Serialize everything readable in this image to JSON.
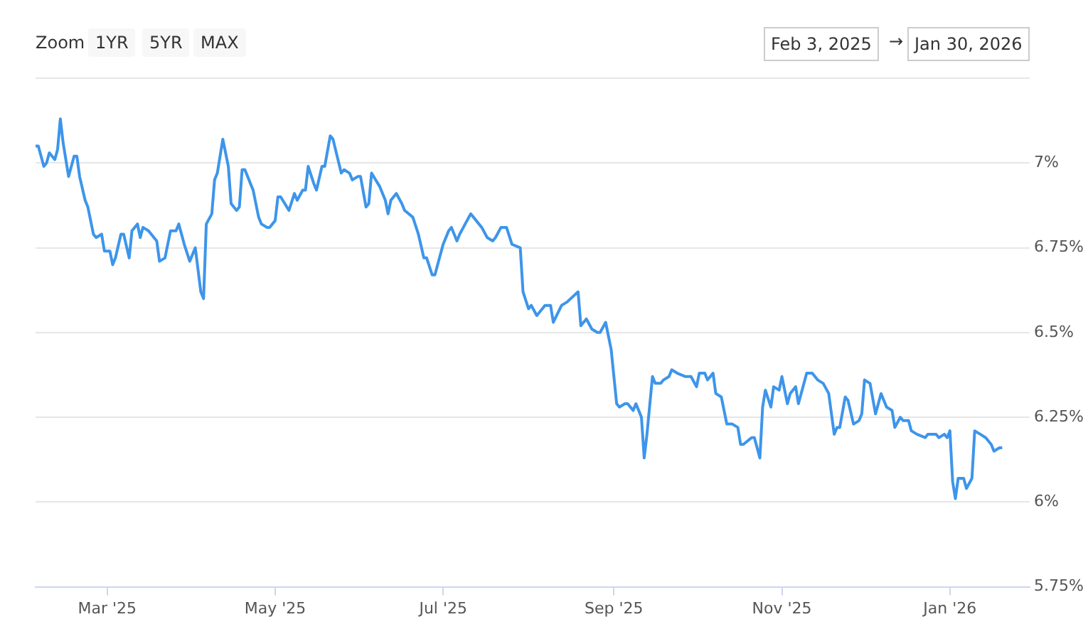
{
  "chart_data": {
    "type": "line",
    "color": "#3d95ea",
    "legend": false,
    "grid": "y",
    "marker": "none",
    "line_style": "solid",
    "annotations": [
      "Zoom",
      "1YR",
      "5YR",
      "MAX",
      "Feb 3, 2025",
      "→",
      "Jan 30, 2026"
    ],
    "xlim": [
      "2025-02-03",
      "2026-01-30"
    ],
    "xticks": [
      {
        "value": "2025-03-01",
        "label": "Mar '25"
      },
      {
        "value": "2025-05-01",
        "label": "May '25"
      },
      {
        "value": "2025-07-01",
        "label": "Jul '25"
      },
      {
        "value": "2025-09-01",
        "label": "Sep '25"
      },
      {
        "value": "2025-11-01",
        "label": "Nov '25"
      },
      {
        "value": "2026-01-01",
        "label": "Jan '26"
      }
    ],
    "ylim": [
      5.75,
      7.25
    ],
    "yticks": [
      {
        "value": 5.75,
        "label": "5.75%"
      },
      {
        "value": 6,
        "label": "6%"
      },
      {
        "value": 6.25,
        "label": "6.25%"
      },
      {
        "value": 6.5,
        "label": "6.5%"
      },
      {
        "value": 6.75,
        "label": "6.75%"
      },
      {
        "value": 7,
        "label": "7%"
      },
      {
        "value": 7.25,
        "label": null
      }
    ],
    "x": [
      "2025-02-03",
      "2025-02-04",
      "2025-02-06",
      "2025-02-07",
      "2025-02-08",
      "2025-02-10",
      "2025-02-11",
      "2025-02-12",
      "2025-02-13",
      "2025-02-15",
      "2025-02-17",
      "2025-02-18",
      "2025-02-19",
      "2025-02-21",
      "2025-02-22",
      "2025-02-24",
      "2025-02-25",
      "2025-02-27",
      "2025-02-28",
      "2025-03-02",
      "2025-03-03",
      "2025-03-04",
      "2025-03-06",
      "2025-03-07",
      "2025-03-09",
      "2025-03-10",
      "2025-03-12",
      "2025-03-13",
      "2025-03-14",
      "2025-03-16",
      "2025-03-19",
      "2025-03-20",
      "2025-03-22",
      "2025-03-24",
      "2025-03-26",
      "2025-03-27",
      "2025-03-29",
      "2025-03-31",
      "2025-04-02",
      "2025-04-04",
      "2025-04-05",
      "2025-04-06",
      "2025-04-08",
      "2025-04-09",
      "2025-04-10",
      "2025-04-12",
      "2025-04-14",
      "2025-04-15",
      "2025-04-17",
      "2025-04-18",
      "2025-04-19",
      "2025-04-20",
      "2025-04-22",
      "2025-04-23",
      "2025-04-25",
      "2025-04-26",
      "2025-04-28",
      "2025-04-29",
      "2025-05-01",
      "2025-05-02",
      "2025-05-03",
      "2025-05-06",
      "2025-05-08",
      "2025-05-09",
      "2025-05-11",
      "2025-05-12",
      "2025-05-13",
      "2025-05-15",
      "2025-05-16",
      "2025-05-18",
      "2025-05-19",
      "2025-05-21",
      "2025-05-22",
      "2025-05-25",
      "2025-05-26",
      "2025-05-28",
      "2025-05-29",
      "2025-05-31",
      "2025-06-01",
      "2025-06-03",
      "2025-06-04",
      "2025-06-05",
      "2025-06-08",
      "2025-06-10",
      "2025-06-11",
      "2025-06-12",
      "2025-06-14",
      "2025-06-16",
      "2025-06-17",
      "2025-06-20",
      "2025-06-22",
      "2025-06-24",
      "2025-06-25",
      "2025-06-27",
      "2025-06-28",
      "2025-06-30",
      "2025-07-01",
      "2025-07-03",
      "2025-07-04",
      "2025-07-06",
      "2025-07-07",
      "2025-07-09",
      "2025-07-11",
      "2025-07-13",
      "2025-07-15",
      "2025-07-17",
      "2025-07-19",
      "2025-07-20",
      "2025-07-22",
      "2025-07-24",
      "2025-07-26",
      "2025-07-29",
      "2025-07-30",
      "2025-08-01",
      "2025-08-02",
      "2025-08-04",
      "2025-08-06",
      "2025-08-07",
      "2025-08-09",
      "2025-08-10",
      "2025-08-13",
      "2025-08-15",
      "2025-08-19",
      "2025-08-20",
      "2025-08-22",
      "2025-08-24",
      "2025-08-26",
      "2025-08-27",
      "2025-08-29",
      "2025-08-31",
      "2025-09-02",
      "2025-09-03",
      "2025-09-05",
      "2025-09-06",
      "2025-09-08",
      "2025-09-09",
      "2025-09-11",
      "2025-09-12",
      "2025-09-13",
      "2025-09-15",
      "2025-09-16",
      "2025-09-18",
      "2025-09-19",
      "2025-09-21",
      "2025-09-22",
      "2025-09-24",
      "2025-09-27",
      "2025-09-29",
      "2025-10-01",
      "2025-10-02",
      "2025-10-04",
      "2025-10-05",
      "2025-10-07",
      "2025-10-08",
      "2025-10-10",
      "2025-10-12",
      "2025-10-14",
      "2025-10-16",
      "2025-10-17",
      "2025-10-18",
      "2025-10-21",
      "2025-10-22",
      "2025-10-24",
      "2025-10-25",
      "2025-10-26",
      "2025-10-28",
      "2025-10-29",
      "2025-10-31",
      "2025-11-01",
      "2025-11-03",
      "2025-11-04",
      "2025-11-06",
      "2025-11-07",
      "2025-11-10",
      "2025-11-12",
      "2025-11-14",
      "2025-11-16",
      "2025-11-18",
      "2025-11-20",
      "2025-11-21",
      "2025-11-22",
      "2025-11-24",
      "2025-11-25",
      "2025-11-27",
      "2025-11-29",
      "2025-11-30",
      "2025-12-01",
      "2025-12-03",
      "2025-12-05",
      "2025-12-07",
      "2025-12-09",
      "2025-12-11",
      "2025-12-12",
      "2025-12-14",
      "2025-12-15",
      "2025-12-17",
      "2025-12-18",
      "2025-12-20",
      "2025-12-23",
      "2025-12-24",
      "2025-12-27",
      "2025-12-28",
      "2025-12-30",
      "2025-12-31",
      "2026-01-01",
      "2026-01-02",
      "2026-01-03",
      "2026-01-04",
      "2026-01-06",
      "2026-01-07",
      "2026-01-09",
      "2026-01-10",
      "2026-01-12",
      "2026-01-14",
      "2026-01-16",
      "2026-01-17",
      "2026-01-19",
      "2026-01-20"
    ],
    "values": [
      7.05,
      7.05,
      6.99,
      7.0,
      7.03,
      7.01,
      7.04,
      7.13,
      7.06,
      6.96,
      7.02,
      7.02,
      6.96,
      6.89,
      6.87,
      6.79,
      6.78,
      6.79,
      6.74,
      6.74,
      6.7,
      6.72,
      6.79,
      6.79,
      6.72,
      6.8,
      6.82,
      6.78,
      6.81,
      6.8,
      6.77,
      6.71,
      6.72,
      6.8,
      6.8,
      6.82,
      6.76,
      6.71,
      6.75,
      6.62,
      6.6,
      6.82,
      6.85,
      6.95,
      6.97,
      7.07,
      6.99,
      6.88,
      6.86,
      6.87,
      6.98,
      6.98,
      6.94,
      6.92,
      6.84,
      6.82,
      6.81,
      6.81,
      6.83,
      6.9,
      6.9,
      6.86,
      6.91,
      6.89,
      6.92,
      6.92,
      6.99,
      6.94,
      6.92,
      6.99,
      6.99,
      7.08,
      7.07,
      6.97,
      6.98,
      6.97,
      6.95,
      6.96,
      6.96,
      6.87,
      6.88,
      6.97,
      6.93,
      6.89,
      6.85,
      6.89,
      6.91,
      6.88,
      6.86,
      6.84,
      6.79,
      6.72,
      6.72,
      6.67,
      6.67,
      6.73,
      6.76,
      6.8,
      6.81,
      6.77,
      6.79,
      6.82,
      6.85,
      6.83,
      6.81,
      6.78,
      6.77,
      6.78,
      6.81,
      6.81,
      6.76,
      6.75,
      6.62,
      6.57,
      6.58,
      6.55,
      6.57,
      6.58,
      6.58,
      6.53,
      6.58,
      6.59,
      6.62,
      6.52,
      6.54,
      6.51,
      6.5,
      6.5,
      6.53,
      6.45,
      6.29,
      6.28,
      6.29,
      6.29,
      6.27,
      6.29,
      6.25,
      6.13,
      6.2,
      6.37,
      6.35,
      6.35,
      6.36,
      6.37,
      6.39,
      6.38,
      6.37,
      6.37,
      6.34,
      6.38,
      6.38,
      6.36,
      6.38,
      6.32,
      6.31,
      6.23,
      6.23,
      6.22,
      6.17,
      6.17,
      6.19,
      6.19,
      6.13,
      6.28,
      6.33,
      6.28,
      6.34,
      6.33,
      6.37,
      6.29,
      6.32,
      6.34,
      6.29,
      6.38,
      6.38,
      6.36,
      6.35,
      6.32,
      6.2,
      6.22,
      6.22,
      6.31,
      6.3,
      6.23,
      6.24,
      6.26,
      6.36,
      6.35,
      6.26,
      6.32,
      6.28,
      6.27,
      6.22,
      6.25,
      6.24,
      6.24,
      6.21,
      6.2,
      6.19,
      6.2,
      6.2,
      6.19,
      6.2,
      6.19,
      6.21,
      6.06,
      6.01,
      6.07,
      6.07,
      6.04,
      6.07,
      6.21,
      6.2,
      6.19,
      6.17,
      6.15,
      6.16,
      6.16
    ]
  }
}
